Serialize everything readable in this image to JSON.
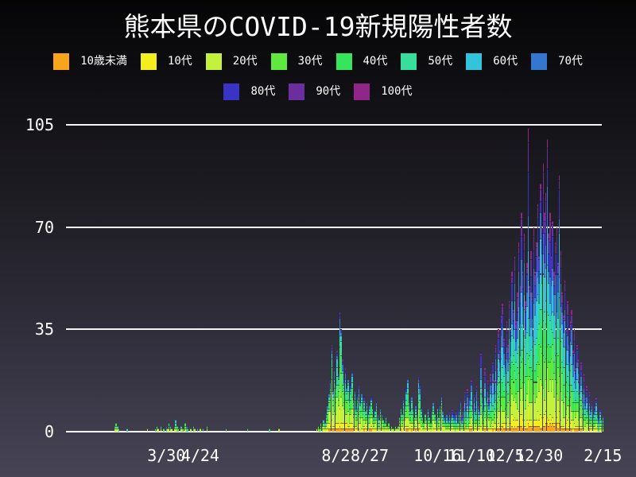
{
  "chart_data": {
    "type": "bar",
    "stacked": true,
    "title": "熊本県のCOVID-19新規陽性者数",
    "xlabel": "",
    "ylabel": "",
    "ylim": [
      0,
      105
    ],
    "grid": true,
    "legend_position": "top",
    "background": "black-to-slate vertical gradient",
    "yticks": [
      {
        "value": 0,
        "label": "0"
      },
      {
        "value": 35,
        "label": "35"
      },
      {
        "value": 70,
        "label": "70"
      },
      {
        "value": 105,
        "label": "105"
      }
    ],
    "x_start_date": "2020-02-21",
    "x_end_date": "2021-02-15",
    "xticks": [
      {
        "label": "3/30",
        "day": 38
      },
      {
        "label": "4/24",
        "day": 63
      },
      {
        "label": "8/2",
        "day": 163
      },
      {
        "label": "8/27",
        "day": 188
      },
      {
        "label": "10/16",
        "day": 238
      },
      {
        "label": "11/10",
        "day": 263
      },
      {
        "label": "12/5",
        "day": 288
      },
      {
        "label": "12/30",
        "day": 313
      },
      {
        "label": "2/15",
        "day": 360
      }
    ],
    "age_groups": [
      {
        "label": "10歳未満",
        "color": "#F8A51B"
      },
      {
        "label": "10代",
        "color": "#F2EF1D"
      },
      {
        "label": "20代",
        "color": "#C2F23C"
      },
      {
        "label": "30代",
        "color": "#5FE83D"
      },
      {
        "label": "40代",
        "color": "#35E55C"
      },
      {
        "label": "50代",
        "color": "#38DE9C"
      },
      {
        "label": "60代",
        "color": "#33C3DB"
      },
      {
        "label": "70代",
        "color": "#3577CE"
      },
      {
        "label": "80代",
        "color": "#3A34C6"
      },
      {
        "label": "90代",
        "color": "#6B2E9E"
      },
      {
        "label": "100代",
        "color": "#90258A"
      }
    ],
    "legend_row_split": [
      8,
      3
    ],
    "age_share_profiles": {
      "spring": [
        5,
        6,
        15,
        13,
        13,
        13,
        13,
        11,
        6,
        4,
        1
      ],
      "summer": [
        4,
        9,
        23,
        18,
        14,
        11,
        9,
        6,
        3.5,
        2,
        0.5
      ],
      "winter": [
        3,
        5,
        13,
        12,
        11,
        12,
        13,
        12,
        10,
        6,
        3
      ]
    },
    "profile_breaks": [
      {
        "until_day": 146,
        "profile": "spring"
      },
      {
        "until_day": 246,
        "profile": "summer"
      },
      {
        "until_day": 1000,
        "profile": "winter"
      }
    ],
    "daily_totals": [
      2,
      3,
      2,
      1,
      0,
      0,
      0,
      0,
      0,
      1,
      0,
      0,
      0,
      0,
      0,
      0,
      0,
      0,
      0,
      0,
      0,
      0,
      0,
      0,
      1,
      0,
      0,
      0,
      0,
      0,
      1,
      2,
      1,
      0,
      2,
      0,
      1,
      0,
      2,
      1,
      3,
      2,
      1,
      0,
      2,
      4,
      2,
      1,
      0,
      2,
      1,
      0,
      3,
      2,
      1,
      0,
      1,
      0,
      2,
      1,
      0,
      1,
      0,
      1,
      0,
      1,
      0,
      0,
      2,
      0,
      0,
      0,
      0,
      0,
      0,
      0,
      0,
      0,
      0,
      0,
      0,
      0,
      1,
      0,
      0,
      0,
      0,
      0,
      0,
      0,
      0,
      0,
      0,
      0,
      0,
      0,
      0,
      0,
      1,
      0,
      0,
      0,
      0,
      0,
      0,
      0,
      0,
      0,
      0,
      0,
      0,
      0,
      0,
      0,
      1,
      0,
      0,
      0,
      0,
      0,
      0,
      1,
      0,
      0,
      0,
      0,
      0,
      0,
      0,
      0,
      0,
      0,
      0,
      0,
      0,
      0,
      0,
      0,
      0,
      0,
      0,
      0,
      0,
      0,
      0,
      0,
      0,
      0,
      0,
      1,
      2,
      1,
      3,
      2,
      4,
      3,
      6,
      9,
      13,
      18,
      30,
      14,
      22,
      17,
      28,
      20,
      41,
      35,
      25,
      18,
      22,
      15,
      18,
      12,
      16,
      20,
      11,
      14,
      9,
      13,
      16,
      10,
      13,
      8,
      12,
      7,
      10,
      6,
      9,
      12,
      8,
      5,
      7,
      10,
      6,
      4,
      8,
      6,
      4,
      3,
      5,
      2,
      3,
      1,
      2,
      1,
      1,
      2,
      1,
      2,
      5,
      8,
      6,
      12,
      9,
      15,
      18,
      10,
      7,
      12,
      8,
      5,
      9,
      6,
      19,
      16,
      8,
      5,
      3,
      6,
      4,
      8,
      5,
      3,
      7,
      10,
      6,
      4,
      8,
      5,
      9,
      12,
      7,
      5,
      3,
      6,
      4,
      7,
      5,
      8,
      6,
      4,
      7,
      5,
      8,
      11,
      6,
      9,
      14,
      10,
      15,
      8,
      12,
      18,
      10,
      13,
      9,
      16,
      12,
      8,
      27,
      15,
      10,
      22,
      14,
      18,
      12,
      20,
      16,
      24,
      18,
      30,
      22,
      35,
      28,
      40,
      44,
      32,
      25,
      38,
      30,
      45,
      35,
      55,
      42,
      60,
      38,
      48,
      65,
      50,
      75,
      55,
      68,
      45,
      58,
      104,
      50,
      62,
      48,
      70,
      55,
      65,
      78,
      60,
      85,
      70,
      92,
      75,
      82,
      100,
      68,
      75,
      60,
      72,
      55,
      65,
      70,
      58,
      88,
      62,
      48,
      40,
      52,
      35,
      45,
      30,
      38,
      42,
      28,
      35,
      22,
      30,
      25,
      18,
      24,
      15,
      20,
      12,
      16,
      10,
      14,
      8,
      11,
      6,
      9,
      12,
      7,
      5,
      8,
      4,
      6
    ]
  }
}
